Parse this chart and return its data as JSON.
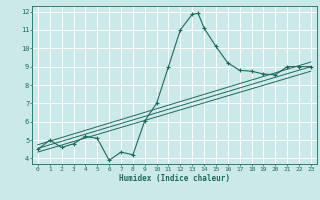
{
  "xlabel": "Humidex (Indice chaleur)",
  "ylabel": "",
  "bg_color": "#cce9e9",
  "grid_color": "#ffffff",
  "line_color": "#1a6b5a",
  "xlim": [
    -0.5,
    23.5
  ],
  "ylim": [
    3.7,
    12.3
  ],
  "xticks": [
    0,
    1,
    2,
    3,
    4,
    5,
    6,
    7,
    8,
    9,
    10,
    11,
    12,
    13,
    14,
    15,
    16,
    17,
    18,
    19,
    20,
    21,
    22,
    23
  ],
  "yticks": [
    4,
    5,
    6,
    7,
    8,
    9,
    10,
    11,
    12
  ],
  "main_x": [
    0,
    1,
    2,
    3,
    4,
    5,
    6,
    7,
    8,
    9,
    10,
    11,
    12,
    13,
    13.5,
    14,
    15,
    16,
    17,
    18,
    19,
    20,
    21,
    22,
    23
  ],
  "main_y": [
    4.5,
    5.0,
    4.6,
    4.8,
    5.2,
    5.1,
    3.9,
    4.35,
    4.2,
    6.05,
    7.0,
    9.0,
    11.0,
    11.85,
    11.9,
    11.1,
    10.1,
    9.2,
    8.8,
    8.75,
    8.6,
    8.55,
    9.0,
    9.0,
    9.0
  ],
  "line1_x": [
    0,
    23
  ],
  "line1_y": [
    4.55,
    9.0
  ],
  "line2_x": [
    0,
    23
  ],
  "line2_y": [
    4.35,
    8.75
  ],
  "line3_x": [
    0,
    23
  ],
  "line3_y": [
    4.75,
    9.25
  ]
}
